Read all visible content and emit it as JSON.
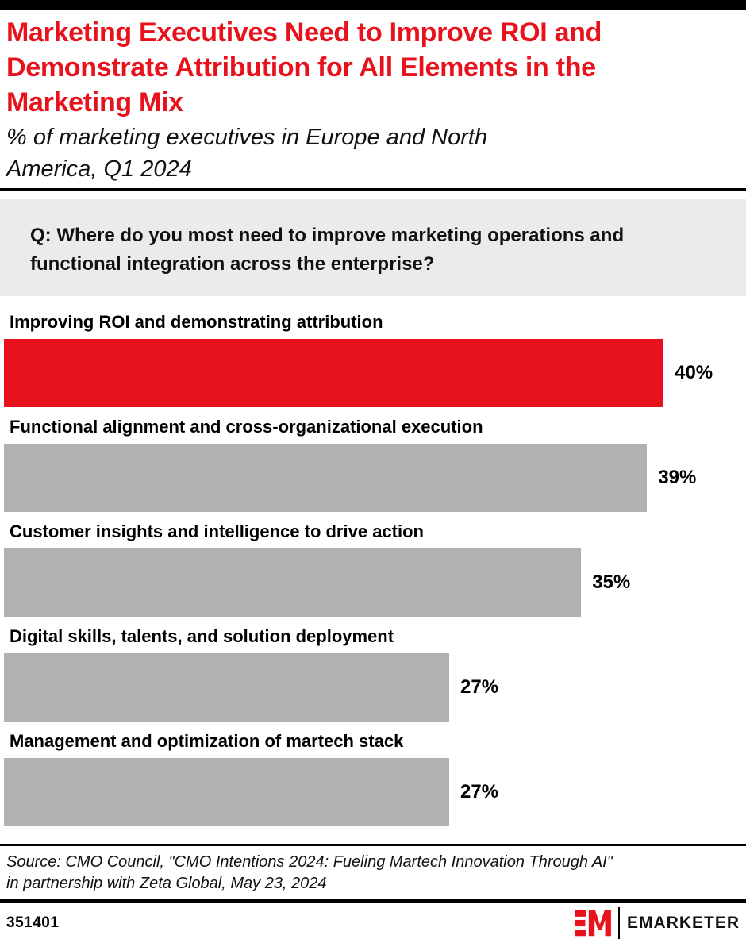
{
  "colors": {
    "accent_red": "#e8121c",
    "bar_gray": "#b1b1b1",
    "question_bg": "#ebebeb",
    "text_black": "#000000",
    "top_bar": "#000000"
  },
  "header": {
    "title_lines": [
      "Marketing Executives Need to Improve ROI and",
      "Demonstrate Attribution for All Elements in the",
      "Marketing Mix"
    ],
    "subtitle_lines": [
      "% of marketing executives in Europe and North",
      "America, Q1 2024"
    ]
  },
  "question": {
    "lines": [
      "Q: Where do you most need to improve marketing operations and",
      "functional integration across the enterprise?"
    ]
  },
  "chart_data": {
    "type": "bar",
    "orientation": "horizontal",
    "title": "Marketing Executives Need to Improve ROI and Demonstrate Attribution for All Elements in the Marketing Mix",
    "subtitle": "% of marketing executives in Europe and North America, Q1 2024",
    "question": "Q: Where do you most need to improve marketing operations and functional integration across the enterprise?",
    "categories": [
      "Improving ROI and demonstrating attribution",
      "Functional alignment and cross-organizational execution",
      "Customer insights and intelligence to drive action",
      "Digital skills, talents, and solution deployment",
      "Management and optimization of martech stack"
    ],
    "values": [
      40,
      39,
      35,
      27,
      27
    ],
    "value_labels": [
      "40%",
      "39%",
      "35%",
      "27%",
      "27%"
    ],
    "xlim": [
      0,
      45
    ],
    "highlight_index": 0,
    "highlight_color": "#e8121c",
    "default_color": "#b1b1b1",
    "grid": false,
    "legend": false,
    "value_label_position": "right-of-bar"
  },
  "source": {
    "lines": [
      "Source: CMO Council, \"CMO Intentions 2024: Fueling Martech Innovation Through AI\"",
      "in partnership with Zeta Global, May 23, 2024"
    ]
  },
  "footer": {
    "chart_id": "351401",
    "brand": "EMARKETER",
    "monogram": "EM"
  }
}
